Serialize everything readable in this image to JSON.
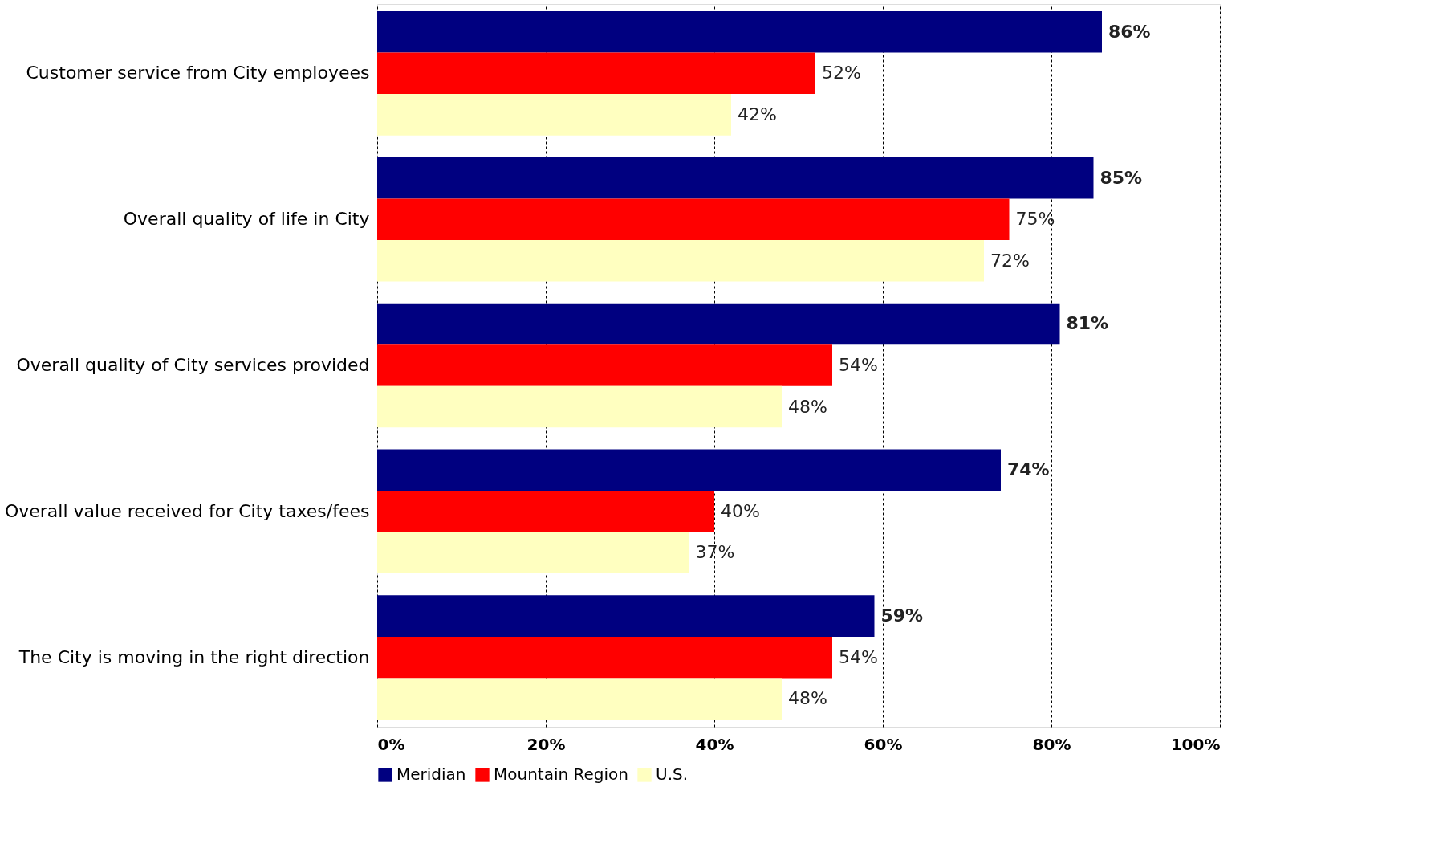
{
  "chart_data": {
    "type": "bar",
    "orientation": "horizontal",
    "categories": [
      "Customer service from City employees",
      "Overall quality of life in City",
      "Overall quality of City services provided",
      "Overall value received for City taxes/fees",
      "The City is moving in the right direction"
    ],
    "series": [
      {
        "name": "Meridian",
        "color": "#000080",
        "values": [
          86,
          85,
          81,
          74,
          59
        ],
        "value_labels": [
          "86%",
          "85%",
          "81%",
          "74%",
          "59%"
        ]
      },
      {
        "name": "Mountain Region",
        "color": "#ff0000",
        "values": [
          52,
          75,
          54,
          40,
          54
        ],
        "value_labels": [
          "52%",
          "75%",
          "54%",
          "40%",
          "54%"
        ]
      },
      {
        "name": "U.S.",
        "color": "#ffffc0",
        "values": [
          42,
          72,
          48,
          37,
          48
        ],
        "value_labels": [
          "42%",
          "72%",
          "48%",
          "37%",
          "48%"
        ]
      }
    ],
    "xlim": [
      0,
      100
    ],
    "xticks": [
      {
        "value": 0,
        "label": "0%"
      },
      {
        "value": 20,
        "label": "20%"
      },
      {
        "value": 40,
        "label": "40%"
      },
      {
        "value": 60,
        "label": "60%"
      },
      {
        "value": 80,
        "label": "80%"
      },
      {
        "value": 100,
        "label": "100%"
      }
    ],
    "grid": "x",
    "legend": "bottom"
  }
}
